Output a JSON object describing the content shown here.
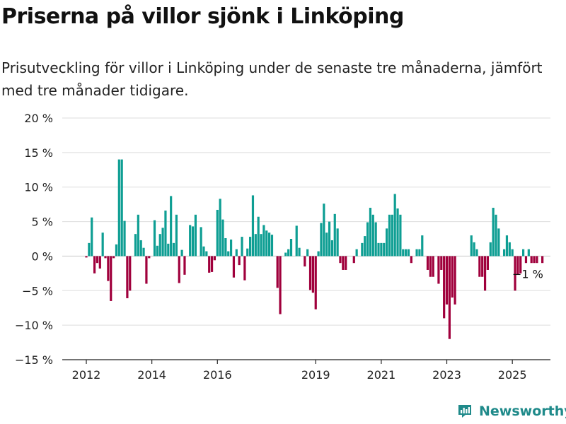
{
  "title": "Priserna på villor sjönk i Linköping",
  "subtitle": "Prisutveckling för villor i Linköping under de senaste tre månaderna, jämfört med tre månader tidigare.",
  "brand": {
    "name": "Newsworthy",
    "logo_icon": "newsworthy-logo-icon"
  },
  "colors": {
    "positive": "#0e9e93",
    "negative": "#a0003c",
    "grid": "#dddddd",
    "axis": "#222222"
  },
  "chart_data": {
    "type": "bar",
    "ylim": [
      -15,
      20
    ],
    "y_ticks": [
      20,
      15,
      10,
      5,
      0,
      -5,
      -10,
      -15
    ],
    "y_tick_labels": [
      "20 %",
      "15 %",
      "10 %",
      "5 %",
      "0 %",
      "−5 %",
      "−10 %",
      "−15 %"
    ],
    "x_ticks": [
      2012,
      2014,
      2016,
      2019,
      2021,
      2023,
      2025
    ],
    "x_tick_labels": [
      "2012",
      "2014",
      "2016",
      "2019",
      "2021",
      "2023",
      "2025"
    ],
    "start": "2012-01",
    "end": "2025-05",
    "last_value_label": "−1 %",
    "values": [
      -0.2,
      1.9,
      5.6,
      -2.5,
      -1.0,
      -1.8,
      3.4,
      -0.3,
      -3.6,
      -6.5,
      -0.3,
      1.7,
      14.0,
      14.0,
      5.1,
      -6.1,
      -5.0,
      0.0,
      3.2,
      6.0,
      2.3,
      1.2,
      -4.0,
      -0.3,
      0.0,
      5.2,
      1.5,
      3.2,
      4.1,
      6.6,
      1.8,
      8.7,
      1.9,
      6.0,
      -3.9,
      0.9,
      -2.7,
      0.0,
      4.5,
      4.3,
      6.0,
      0.0,
      4.2,
      1.4,
      0.7,
      -2.4,
      -2.3,
      -0.6,
      6.7,
      8.3,
      5.3,
      2.6,
      0.7,
      2.4,
      -3.1,
      1.0,
      -1.3,
      2.8,
      -3.5,
      1.1,
      2.8,
      8.8,
      3.2,
      5.7,
      3.2,
      4.5,
      3.7,
      3.4,
      3.1,
      0.0,
      -4.6,
      -8.4,
      0.0,
      0.5,
      1.0,
      2.5,
      0.0,
      4.4,
      1.2,
      0.0,
      -1.5,
      1.0,
      -4.9,
      -5.3,
      -7.7,
      0.7,
      4.8,
      7.6,
      3.4,
      5.0,
      2.3,
      6.1,
      4.0,
      -1.0,
      -2.0,
      -2.0,
      0.0,
      0.0,
      -1.0,
      1.0,
      0.0,
      1.9,
      2.9,
      4.9,
      7.0,
      6.0,
      4.9,
      1.9,
      1.9,
      1.9,
      4.0,
      6.0,
      6.0,
      9.0,
      6.9,
      6.0,
      1.0,
      1.0,
      1.0,
      -1.0,
      0.0,
      1.0,
      1.0,
      3.0,
      0.0,
      -2.0,
      -3.0,
      -3.0,
      0.0,
      -4.0,
      -2.0,
      -9.0,
      -7.0,
      -12.0,
      -6.0,
      -7.0,
      0.0,
      0.0,
      0.0,
      0.0,
      0.0,
      3.0,
      2.0,
      1.0,
      -3.0,
      -3.0,
      -5.0,
      -2.0,
      2.0,
      7.0,
      6.0,
      4.0,
      0.0,
      1.0,
      3.0,
      2.0,
      1.0,
      -5.0,
      -2.7,
      -2.5,
      1.0,
      -1.0,
      1.0,
      -1.0,
      -1.0,
      -1.0,
      0.0,
      -1.0
    ]
  }
}
